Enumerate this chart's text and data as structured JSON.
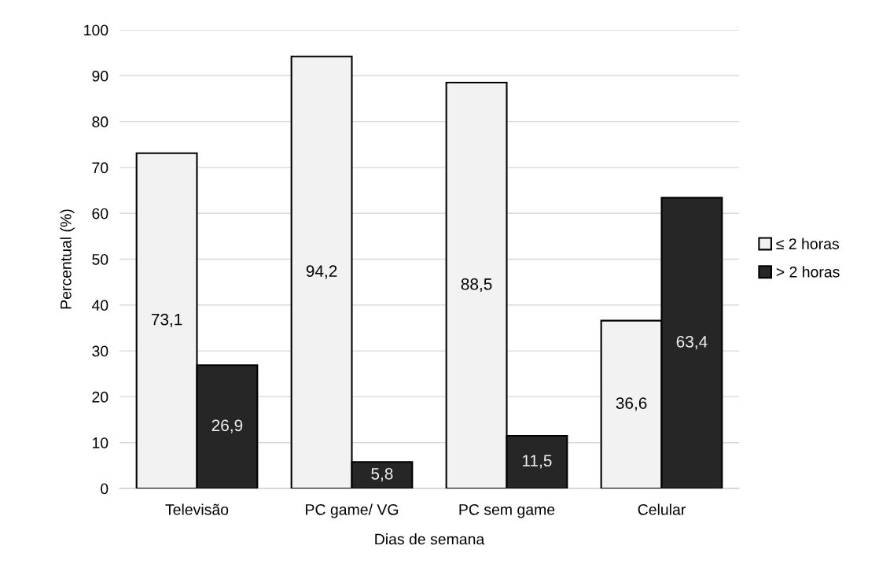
{
  "chart_data": {
    "type": "bar",
    "xlabel": "Dias de semana",
    "ylabel": "Percentual (%)",
    "categories": [
      "Televisão",
      "PC game/ VG",
      "PC sem game",
      "Celular"
    ],
    "series": [
      {
        "name": "≤ 2 horas",
        "color": "#f2f2f2",
        "values": [
          73.1,
          94.2,
          88.5,
          36.6
        ],
        "value_labels": [
          "73,1",
          "94,2",
          "88,5",
          "36,6"
        ]
      },
      {
        "name": "> 2 horas",
        "color": "#262626",
        "values": [
          26.9,
          5.8,
          11.5,
          63.4
        ],
        "value_labels": [
          "26,9",
          "5,8",
          "11,5",
          "63,4"
        ]
      }
    ],
    "ylim": [
      0,
      100
    ],
    "yticks": [
      0,
      10,
      20,
      30,
      40,
      50,
      60,
      70,
      80,
      90,
      100
    ],
    "grid": "y",
    "legend": "right"
  }
}
